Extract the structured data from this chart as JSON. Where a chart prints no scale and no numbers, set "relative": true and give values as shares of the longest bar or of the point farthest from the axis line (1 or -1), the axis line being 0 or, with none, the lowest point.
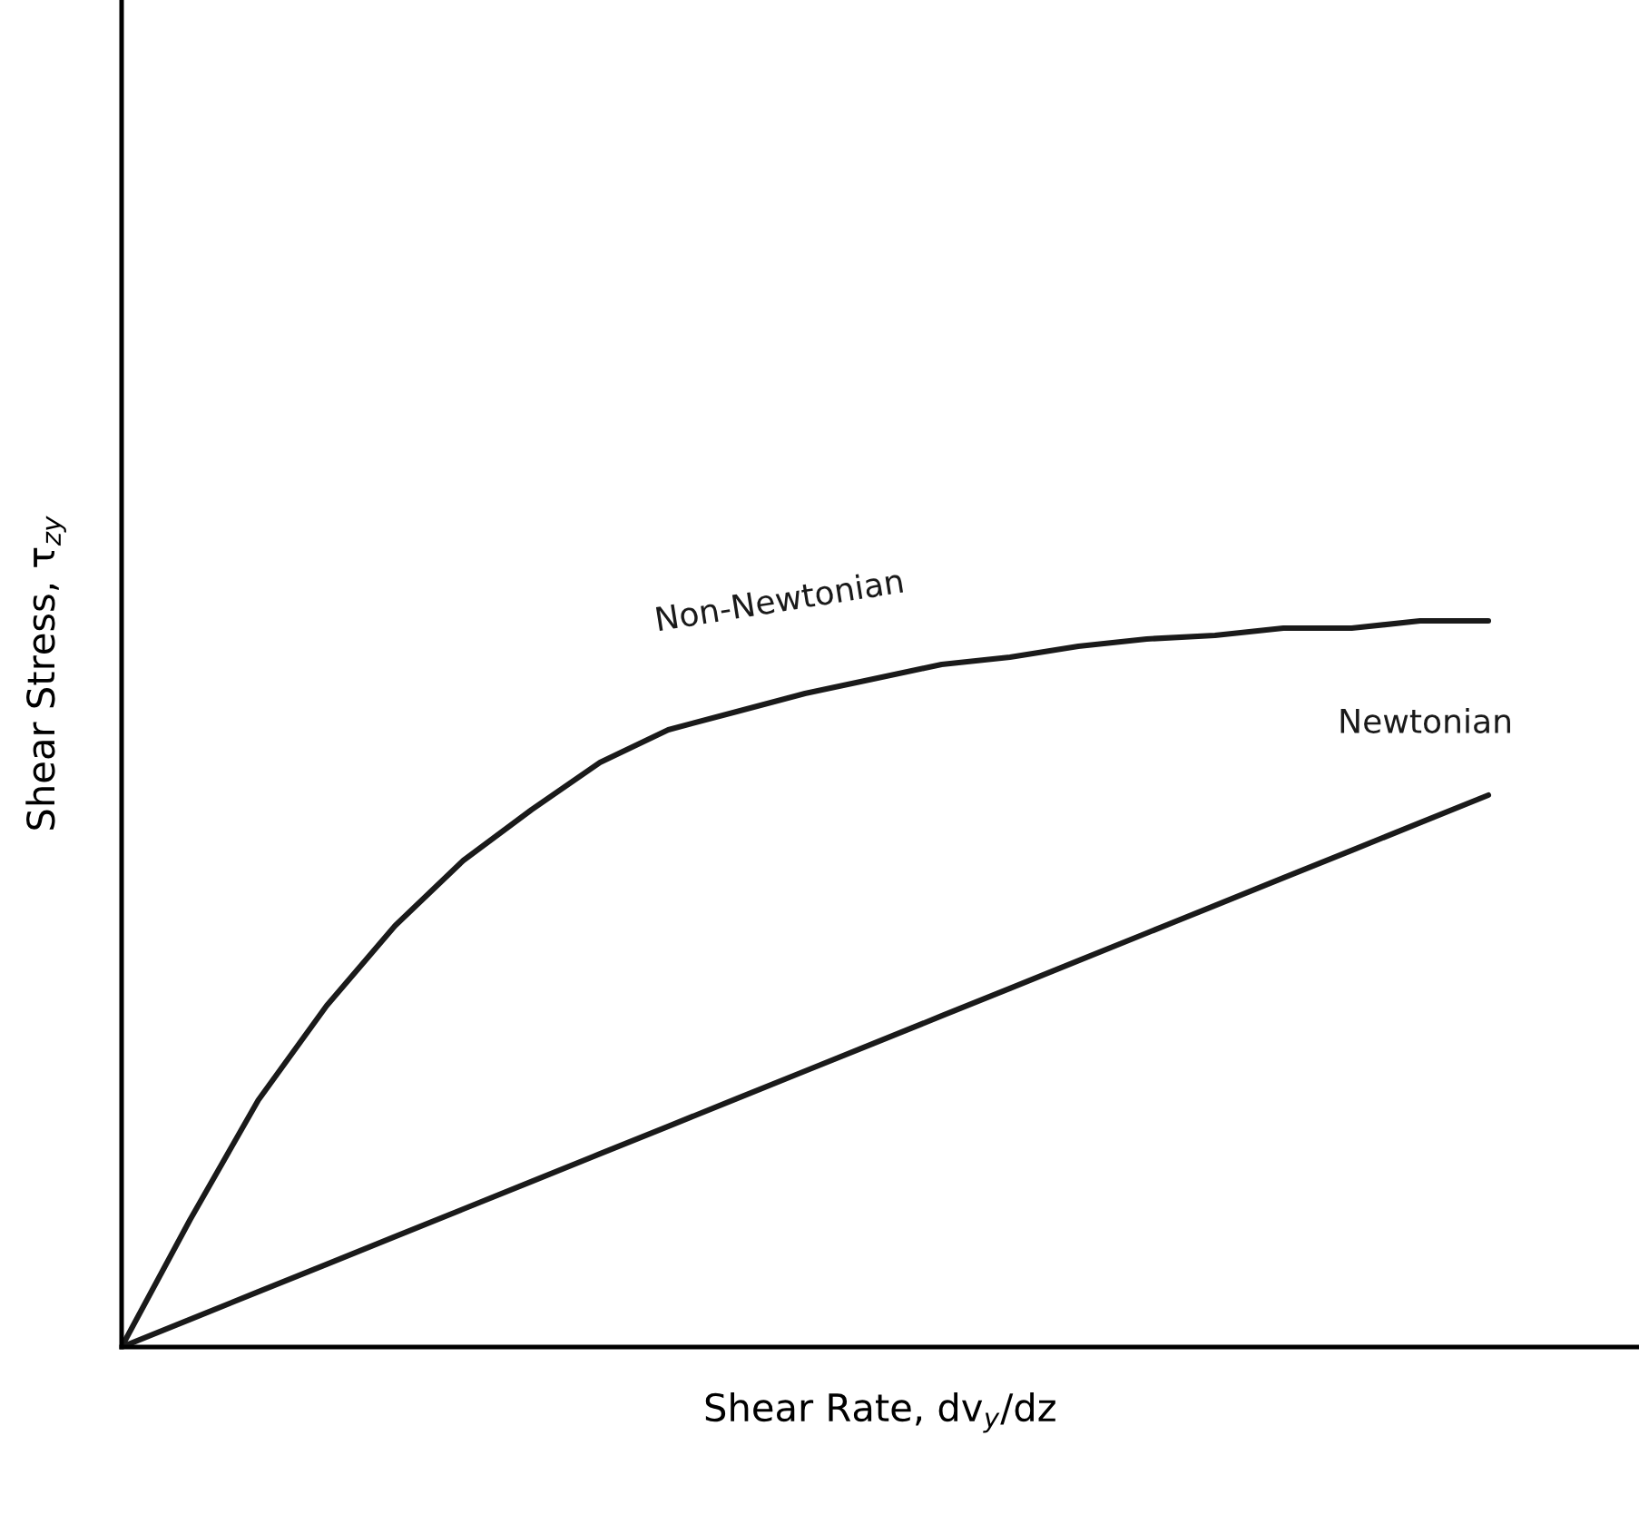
{
  "chart_data": {
    "type": "line",
    "relative": true,
    "xlabel": "Shear Rate, dv$_{y}$/dz",
    "ylabel": "Shear Stress, τ$_{zy}$",
    "categories": [
      null,
      null,
      null,
      null,
      null,
      null,
      null,
      null,
      null,
      null,
      null,
      null,
      null,
      null,
      null,
      null,
      null,
      null,
      null,
      null,
      null
    ],
    "series": [
      {
        "name": "Non-Newtonian",
        "color": "#1a1a1a",
        "values": [
          0,
          0.175,
          0.34,
          0.47,
          0.58,
          0.67,
          0.74,
          0.805,
          0.85,
          0.875,
          0.9,
          0.92,
          0.94,
          0.95,
          0.965,
          0.975,
          0.98,
          0.99,
          0.99,
          1.0,
          1.0
        ]
      },
      {
        "name": "Newtonian",
        "color": "#1a1a1a",
        "values": [
          0,
          0.038,
          0.076,
          0.114,
          0.152,
          0.19,
          0.228,
          0.266,
          0.304,
          0.342,
          0.38,
          0.418,
          0.456,
          0.494,
          0.532,
          0.57,
          0.608,
          0.646,
          0.684,
          0.722,
          0.76
        ]
      }
    ],
    "legend": false,
    "marker": "none",
    "line_style": "solid"
  }
}
